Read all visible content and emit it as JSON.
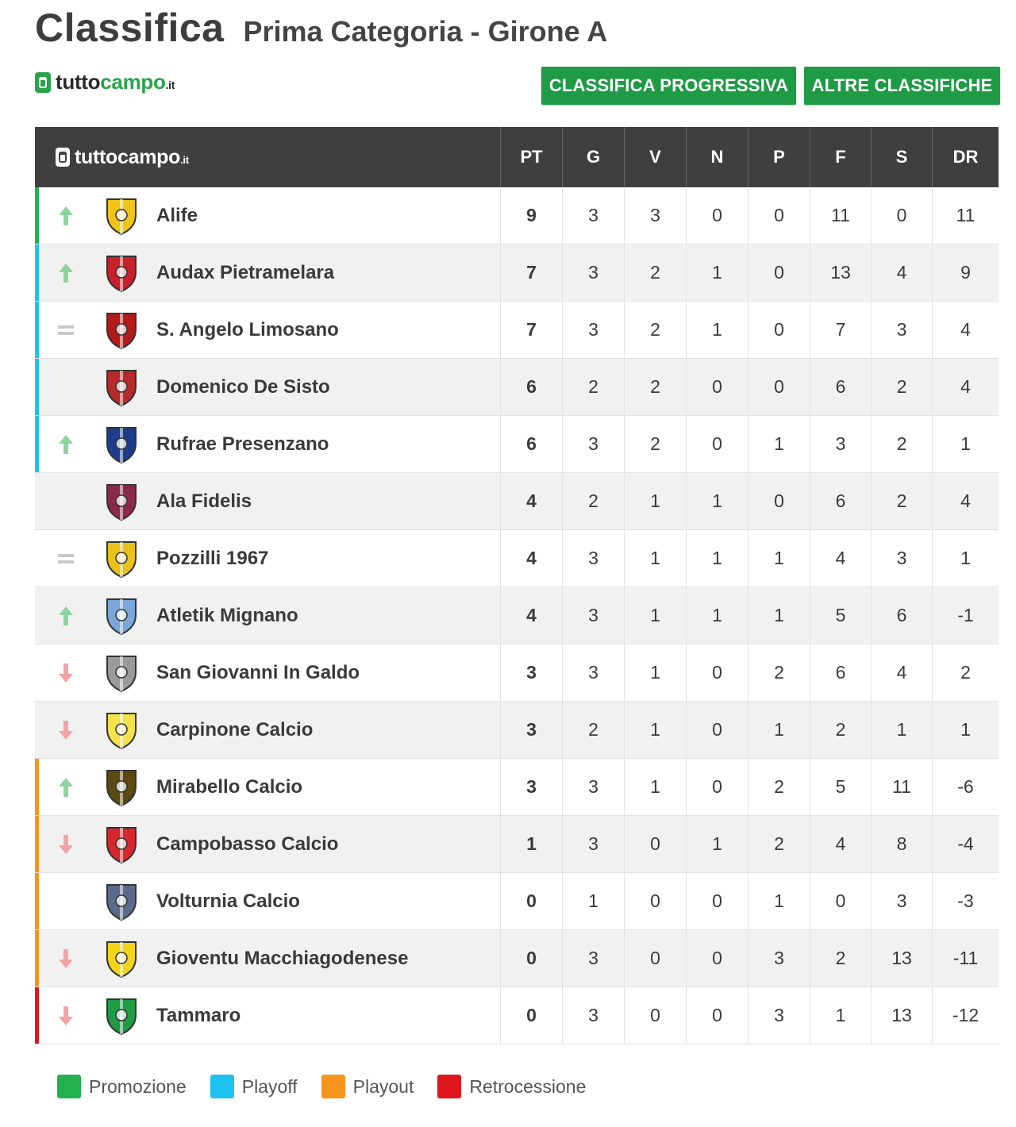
{
  "header": {
    "title": "Classifica",
    "subtitle": "Prima Categoria - Girone A"
  },
  "brand": {
    "name_dark": "tutto",
    "name_green": "campo",
    "suffix": ".it"
  },
  "buttons": {
    "progressiva": "CLASSIFICA PROGRESSIVA",
    "altre": "ALTRE CLASSIFICHE"
  },
  "table": {
    "brand_text": "tuttocampo",
    "brand_suffix": ".it",
    "columns": [
      "PT",
      "G",
      "V",
      "N",
      "P",
      "F",
      "S",
      "DR"
    ],
    "rows": [
      {
        "team": "Alife",
        "trend": "up",
        "zone": "promozione",
        "crest": "#f0c419",
        "pt": "9",
        "g": "3",
        "v": "3",
        "n": "0",
        "p": "0",
        "f": "11",
        "s": "0",
        "dr": "11"
      },
      {
        "team": "Audax Pietramelara",
        "trend": "up",
        "zone": "playoff",
        "crest": "#c8202b",
        "pt": "7",
        "g": "3",
        "v": "2",
        "n": "1",
        "p": "0",
        "f": "13",
        "s": "4",
        "dr": "9"
      },
      {
        "team": "S. Angelo Limosano",
        "trend": "same",
        "zone": "playoff",
        "crest": "#b31b1b",
        "pt": "7",
        "g": "3",
        "v": "2",
        "n": "1",
        "p": "0",
        "f": "7",
        "s": "3",
        "dr": "4"
      },
      {
        "team": "Domenico De Sisto",
        "trend": "none",
        "zone": "playoff",
        "crest": "#b52a2a",
        "pt": "6",
        "g": "2",
        "v": "2",
        "n": "0",
        "p": "0",
        "f": "6",
        "s": "2",
        "dr": "4"
      },
      {
        "team": "Rufrae Presenzano",
        "trend": "up",
        "zone": "playoff",
        "crest": "#1e3c8c",
        "pt": "6",
        "g": "3",
        "v": "2",
        "n": "0",
        "p": "1",
        "f": "3",
        "s": "2",
        "dr": "1"
      },
      {
        "team": "Ala Fidelis",
        "trend": "none",
        "zone": "none",
        "crest": "#8a2a4a",
        "pt": "4",
        "g": "2",
        "v": "1",
        "n": "1",
        "p": "0",
        "f": "6",
        "s": "2",
        "dr": "4"
      },
      {
        "team": "Pozzilli 1967",
        "trend": "same",
        "zone": "none",
        "crest": "#e8c21a",
        "pt": "4",
        "g": "3",
        "v": "1",
        "n": "1",
        "p": "1",
        "f": "4",
        "s": "3",
        "dr": "1"
      },
      {
        "team": "Atletik Mignano",
        "trend": "up",
        "zone": "none",
        "crest": "#7aa6d8",
        "pt": "4",
        "g": "3",
        "v": "1",
        "n": "1",
        "p": "1",
        "f": "5",
        "s": "6",
        "dr": "-1"
      },
      {
        "team": "San Giovanni In Galdo",
        "trend": "down",
        "zone": "none",
        "crest": "#9a9a9a",
        "pt": "3",
        "g": "3",
        "v": "1",
        "n": "0",
        "p": "2",
        "f": "6",
        "s": "4",
        "dr": "2"
      },
      {
        "team": "Carpinone Calcio",
        "trend": "down",
        "zone": "none",
        "crest": "#f3e24a",
        "pt": "3",
        "g": "2",
        "v": "1",
        "n": "0",
        "p": "1",
        "f": "2",
        "s": "1",
        "dr": "1"
      },
      {
        "team": "Mirabello Calcio",
        "trend": "up",
        "zone": "playout",
        "crest": "#5a4a10",
        "pt": "3",
        "g": "3",
        "v": "1",
        "n": "0",
        "p": "2",
        "f": "5",
        "s": "11",
        "dr": "-6"
      },
      {
        "team": "Campobasso Calcio",
        "trend": "down",
        "zone": "playout",
        "crest": "#d7262d",
        "pt": "1",
        "g": "3",
        "v": "0",
        "n": "1",
        "p": "2",
        "f": "4",
        "s": "8",
        "dr": "-4"
      },
      {
        "team": "Volturnia Calcio",
        "trend": "none",
        "zone": "playout",
        "crest": "#5a6a8a",
        "pt": "0",
        "g": "1",
        "v": "0",
        "n": "0",
        "p": "1",
        "f": "0",
        "s": "3",
        "dr": "-3"
      },
      {
        "team": "Gioventu Macchiagodenese",
        "trend": "down",
        "zone": "playout",
        "crest": "#f2d41a",
        "pt": "0",
        "g": "3",
        "v": "0",
        "n": "0",
        "p": "3",
        "f": "2",
        "s": "13",
        "dr": "-11"
      },
      {
        "team": "Tammaro",
        "trend": "down",
        "zone": "retrocessione",
        "crest": "#1f9a45",
        "pt": "0",
        "g": "3",
        "v": "0",
        "n": "0",
        "p": "3",
        "f": "1",
        "s": "13",
        "dr": "-12"
      }
    ]
  },
  "legend": [
    {
      "label": "Promozione",
      "color": "#22b14c"
    },
    {
      "label": "Playoff",
      "color": "#1ec1f0"
    },
    {
      "label": "Playout",
      "color": "#f7941d"
    },
    {
      "label": "Retrocessione",
      "color": "#e0161e"
    }
  ],
  "zone_colors": {
    "promozione": "#22b14c",
    "playoff": "#1ec1f0",
    "playout": "#f7941d",
    "retrocessione": "#e0161e",
    "none": "transparent"
  },
  "trend_colors": {
    "up": "#8fd49f",
    "down": "#f2a3a6",
    "same": "#c9c9c9"
  }
}
